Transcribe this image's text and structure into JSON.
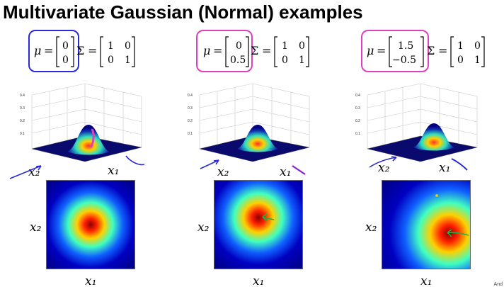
{
  "title": "Multivariate Gaussian (Normal) examples",
  "corner_text": "And",
  "examples": [
    {
      "mu": [
        "0",
        "0"
      ],
      "sigma": [
        [
          "1",
          "0"
        ],
        [
          "0",
          "1"
        ]
      ],
      "annotation_color": "#2a2ad8"
    },
    {
      "mu": [
        "0",
        "0.5"
      ],
      "sigma": [
        [
          "1",
          "0"
        ],
        [
          "0",
          "1"
        ]
      ],
      "annotation_color": "#e040c0"
    },
    {
      "mu": [
        "1.5",
        "−0.5"
      ],
      "sigma": [
        [
          "1",
          "0"
        ],
        [
          "0",
          "1"
        ]
      ],
      "annotation_color": "#e040c0"
    }
  ],
  "symbols": {
    "mu": "μ",
    "equals": "=",
    "sigma": "Σ"
  },
  "surface_axis": {
    "z_ticks": [
      "0.4",
      "0.3",
      "0.2",
      "0.1"
    ],
    "xlabel": "x₁",
    "ylabel": "x₂"
  },
  "contour_axis": {
    "xlabel": "x₁",
    "ylabel": "x₂"
  }
}
